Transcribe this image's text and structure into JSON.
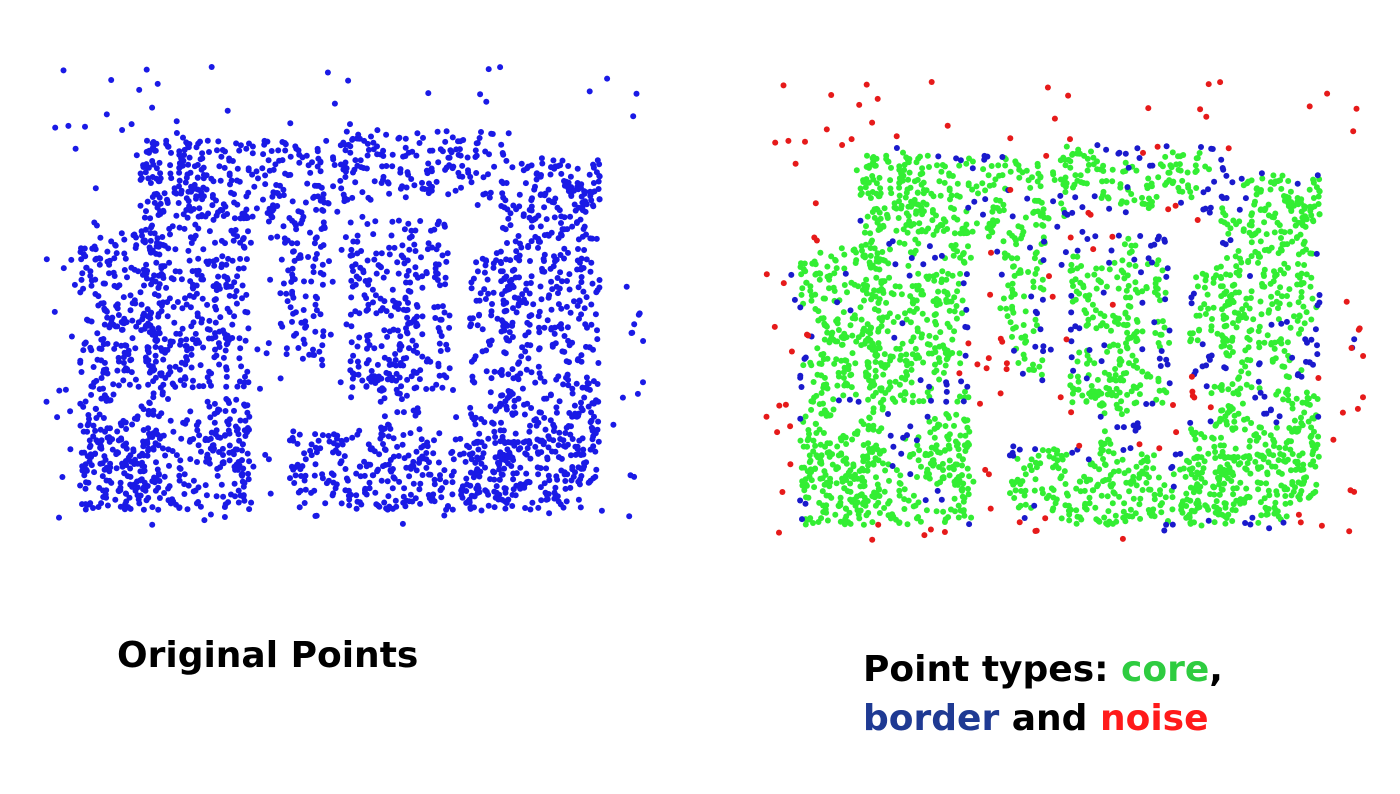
{
  "left_caption": "Original Points",
  "right_caption": {
    "prefix": "Point types: ",
    "core": "core",
    "comma": ",",
    "border": "border",
    "and": " and ",
    "noise": "noise"
  },
  "colors": {
    "original": "#1a1ae6",
    "core": "#33ee33",
    "border": "#1a1acc",
    "noise": "#e61a1a",
    "core_text": "#2ecc40",
    "border_text": "#1f3a93",
    "noise_text": "#ff1a1a"
  },
  "chart_data": [
    {
      "type": "scatter",
      "series": [
        {
          "values": []
        }
      ]
    },
    {
      "type": "scatter",
      "series": [
        {
          "values": []
        },
        {
          "values": []
        },
        {
          "values": []
        }
      ]
    }
  ]
}
